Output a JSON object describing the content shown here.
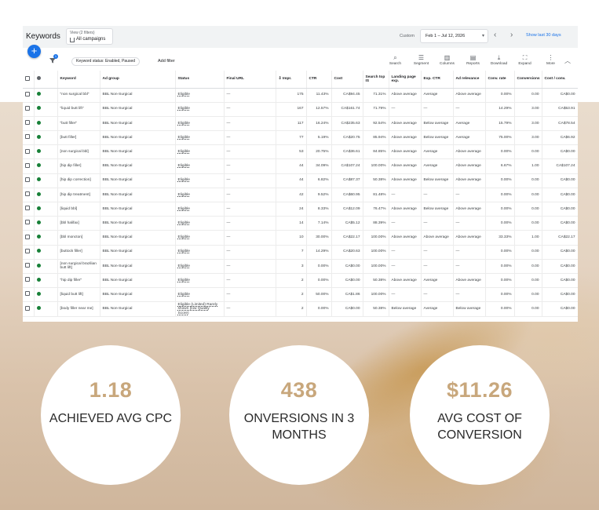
{
  "ui": {
    "title": "Keywords",
    "view_sub": "View (2 filters)",
    "view_main": "All campaigns",
    "date_label": "Custom",
    "date_range": "Feb 1 – Jul 12, 2026",
    "show_last": "Show last 30 days",
    "filter_chip": "Keyword status: Enabled, Paused",
    "filter_count": "1",
    "add_filter": "Add filter",
    "tools": [
      "Search",
      "Segment",
      "Columns",
      "Reports",
      "Download",
      "Expand",
      "More"
    ],
    "columns": [
      "Keyword",
      "Ad group",
      "Status",
      "Final URL",
      "Impr.",
      "CTR",
      "Cost",
      "Search top IS",
      "Landing page exp.",
      "Exp. CTR",
      "Ad relevance",
      "Conv. rate",
      "Conversions",
      "Cost / conv."
    ],
    "rows": [
      {
        "kw": "\"non surgical bbl\"",
        "ag": "BBL Non-Surgical",
        "st": "Eligible",
        "url": "—",
        "impr": "175",
        "ctr": "11.43%",
        "cost": "CA$94.45",
        "is": "71.31%",
        "lp": "Above average",
        "ectr": "Average",
        "rel": "Above average",
        "cr": "0.00%",
        "conv": "0.00",
        "cpc": "CA$0.00"
      },
      {
        "kw": "\"liquid butt lift\"",
        "ag": "BBL Non-Surgical",
        "st": "Eligible",
        "url": "—",
        "impr": "167",
        "ctr": "12.57%",
        "cost": "CA$161.74",
        "is": "71.79%",
        "lp": "—",
        "ectr": "—",
        "rel": "—",
        "cr": "14.29%",
        "conv": "3.00",
        "cpc": "CA$53.91"
      },
      {
        "kw": "\"butt filler\"",
        "ag": "BBL Non-Surgical",
        "st": "Eligible",
        "url": "—",
        "impr": "117",
        "ctr": "16.24%",
        "cost": "CA$235.63",
        "is": "92.54%",
        "lp": "Above average",
        "ectr": "Below average",
        "rel": "Average",
        "cr": "15.79%",
        "conv": "3.00",
        "cpc": "CA$78.54"
      },
      {
        "kw": "[butt filler]",
        "ag": "BBL Non-Surgical",
        "st": "Eligible",
        "url": "—",
        "impr": "77",
        "ctr": "5.19%",
        "cost": "CA$20.75",
        "is": "85.94%",
        "lp": "Above average",
        "ectr": "Below average",
        "rel": "Average",
        "cr": "75.00%",
        "conv": "3.00",
        "cpc": "CA$6.92"
      },
      {
        "kw": "[non surgical bbl]",
        "ag": "BBL Non-Surgical",
        "st": "Eligible",
        "url": "—",
        "impr": "53",
        "ctr": "20.75%",
        "cost": "CA$36.61",
        "is": "84.85%",
        "lp": "Above average",
        "ectr": "Average",
        "rel": "Above average",
        "cr": "0.00%",
        "conv": "0.00",
        "cpc": "CA$0.00"
      },
      {
        "kw": "[hip dip filler]",
        "ag": "BBL Non-Surgical",
        "st": "Eligible",
        "url": "—",
        "impr": "44",
        "ctr": "34.09%",
        "cost": "CA$107.24",
        "is": "100.00%",
        "lp": "Above average",
        "ectr": "Average",
        "rel": "Above average",
        "cr": "6.67%",
        "conv": "1.00",
        "cpc": "CA$107.24"
      },
      {
        "kw": "[hip dip correction]",
        "ag": "BBL Non-Surgical",
        "st": "Eligible",
        "url": "—",
        "impr": "44",
        "ctr": "6.82%",
        "cost": "CA$87.37",
        "is": "50.38%",
        "lp": "Above average",
        "ectr": "Below average",
        "rel": "Above average",
        "cr": "0.00%",
        "conv": "0.00",
        "cpc": "CA$0.00"
      },
      {
        "kw": "[hip dip treatment]",
        "ag": "BBL Non-Surgical",
        "st": "Eligible",
        "url": "—",
        "impr": "42",
        "ctr": "9.52%",
        "cost": "CA$60.95",
        "is": "81.48%",
        "lp": "—",
        "ectr": "—",
        "rel": "—",
        "cr": "0.00%",
        "conv": "0.00",
        "cpc": "CA$0.00"
      },
      {
        "kw": "[liquid bbl]",
        "ag": "BBL Non-Surgical",
        "st": "Eligible",
        "url": "—",
        "impr": "24",
        "ctr": "8.33%",
        "cost": "CA$12.09",
        "is": "76.47%",
        "lp": "Above average",
        "ectr": "Below average",
        "rel": "Above average",
        "cr": "0.00%",
        "conv": "0.00",
        "cpc": "CA$0.00"
      },
      {
        "kw": "[bbl halifax]",
        "ag": "BBL Non-Surgical",
        "st": "Eligible",
        "url": "—",
        "impr": "14",
        "ctr": "7.14%",
        "cost": "CA$5.12",
        "is": "88.39%",
        "lp": "—",
        "ectr": "—",
        "rel": "—",
        "cr": "0.00%",
        "conv": "0.00",
        "cpc": "CA$0.00"
      },
      {
        "kw": "[bbl moncton]",
        "ag": "BBL Non-Surgical",
        "st": "Eligible",
        "url": "—",
        "impr": "10",
        "ctr": "30.00%",
        "cost": "CA$22.17",
        "is": "100.00%",
        "lp": "Above average",
        "ectr": "Above average",
        "rel": "Above average",
        "cr": "33.33%",
        "conv": "1.00",
        "cpc": "CA$22.17"
      },
      {
        "kw": "[buttock filler]",
        "ag": "BBL Non-Surgical",
        "st": "Eligible",
        "url": "—",
        "impr": "7",
        "ctr": "14.29%",
        "cost": "CA$20.63",
        "is": "100.00%",
        "lp": "—",
        "ectr": "—",
        "rel": "—",
        "cr": "0.00%",
        "conv": "0.00",
        "cpc": "CA$0.00"
      },
      {
        "kw": "[non surgical brazilian butt lift]",
        "ag": "BBL Non-Surgical",
        "st": "Eligible",
        "url": "—",
        "impr": "3",
        "ctr": "0.00%",
        "cost": "CA$0.00",
        "is": "100.00%",
        "lp": "—",
        "ectr": "—",
        "rel": "—",
        "cr": "0.00%",
        "conv": "0.00",
        "cpc": "CA$0.00"
      },
      {
        "kw": "\"hip dip filler\"",
        "ag": "BBL Non-Surgical",
        "st": "Eligible",
        "url": "—",
        "impr": "2",
        "ctr": "0.00%",
        "cost": "CA$0.00",
        "is": "50.38%",
        "lp": "Above average",
        "ectr": "Average",
        "rel": "Above average",
        "cr": "0.00%",
        "conv": "0.00",
        "cpc": "CA$0.00"
      },
      {
        "kw": "[liquid butt lift]",
        "ag": "BBL Non-Surgical",
        "st": "Eligible",
        "url": "—",
        "impr": "2",
        "ctr": "50.00%",
        "cost": "CA$1.86",
        "is": "100.00%",
        "lp": "—",
        "ectr": "—",
        "rel": "—",
        "cr": "0.00%",
        "conv": "0.00",
        "cpc": "CA$0.00"
      },
      {
        "kw": "[body filler near me]",
        "ag": "BBL Non-Surgical",
        "st": "Eligible (Limited) Rarely shown (low Quality Score)",
        "url": "—",
        "impr": "2",
        "ctr": "0.00%",
        "cost": "CA$0.00",
        "is": "50.38%",
        "lp": "Below average",
        "ectr": "Average",
        "rel": "Below average",
        "cr": "0.00%",
        "conv": "0.00",
        "cpc": "CA$0.00",
        "warn": true
      }
    ]
  },
  "stats": [
    {
      "value": "1.18",
      "label": "ACHIEVED AVG CPC"
    },
    {
      "value": "438",
      "label": "ONVERSIONS IN 3 MONTHS"
    },
    {
      "value": "$11.26",
      "label": "AVG COST OF CONVERSION"
    }
  ]
}
